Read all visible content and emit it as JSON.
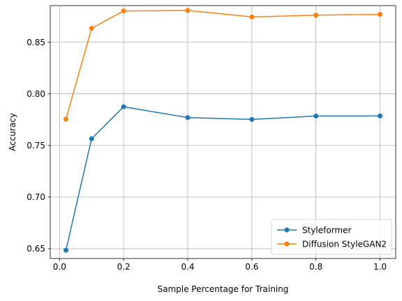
{
  "chart_data": {
    "type": "line",
    "title": "",
    "xlabel": "Sample Percentage for Training",
    "ylabel": "Accuracy",
    "xlim": [
      -0.029,
      1.049
    ],
    "ylim": [
      0.6405,
      0.8855
    ],
    "xticks": [
      0.0,
      0.2,
      0.4,
      0.6,
      0.8,
      1.0
    ],
    "xtick_labels": [
      "0.0",
      "0.2",
      "0.4",
      "0.6",
      "0.8",
      "1.0"
    ],
    "yticks": [
      0.65,
      0.7,
      0.75,
      0.8,
      0.85
    ],
    "ytick_labels": [
      "0.65",
      "0.70",
      "0.75",
      "0.80",
      "0.85"
    ],
    "grid": true,
    "legend_position": "lower-right",
    "x": [
      0.02,
      0.1,
      0.2,
      0.4,
      0.6,
      0.8,
      1.0
    ],
    "series": [
      {
        "name": "Styleformer",
        "color": "#1f77b4",
        "marker": "circle",
        "values": [
          0.6485,
          0.7565,
          0.7875,
          0.777,
          0.7752,
          0.7785,
          0.7786
        ]
      },
      {
        "name": "Diffusion StyleGAN2",
        "color": "#ff7f0e",
        "marker": "circle",
        "values": [
          0.7755,
          0.8635,
          0.8803,
          0.8808,
          0.8745,
          0.8762,
          0.877
        ]
      }
    ]
  }
}
